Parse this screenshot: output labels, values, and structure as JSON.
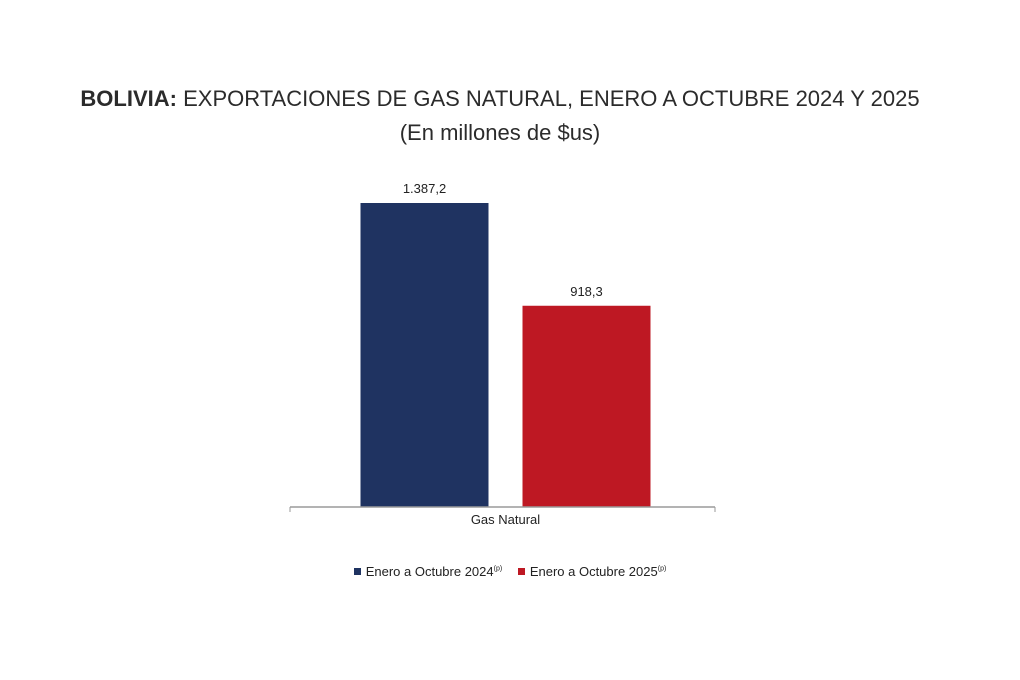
{
  "title_country": "BOLIVIA:",
  "title_rest": " EXPORTACIONES DE GAS NATURAL, ENERO A OCTUBRE 2024 Y 2025",
  "subtitle": "(En millones de $us)",
  "chart_data": {
    "type": "bar",
    "categories": [
      "Gas Natural"
    ],
    "series": [
      {
        "name": "Enero a Octubre 2024",
        "superscript": "(p)",
        "values": [
          1387.2
        ],
        "label": "1.387,2",
        "color": "#1f3361"
      },
      {
        "name": "Enero a Octubre  2025",
        "superscript": "(p)",
        "values": [
          918.3
        ],
        "label": "918,3",
        "color": "#be1823"
      }
    ],
    "ylim": [
      0,
      1387.2
    ],
    "grid": false,
    "legend_position": "bottom"
  }
}
